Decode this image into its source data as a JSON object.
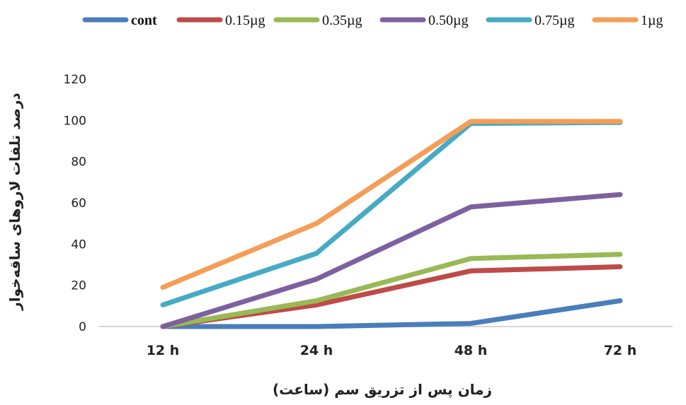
{
  "chart_data": {
    "type": "line",
    "categories": [
      "12 h",
      "24 h",
      "48 h",
      "72 h"
    ],
    "ylim": [
      0,
      120
    ],
    "yticks": [
      0,
      20,
      40,
      60,
      80,
      100,
      120
    ],
    "xlabel": "زمان پس از تزریق سم (ساعت)",
    "ylabel": "درصد تلفات لاروهای ساقه‌خوار",
    "legend_position": "top",
    "grid": false,
    "series": [
      {
        "name": "cont",
        "color": "#4a7ebb",
        "values": [
          0,
          0,
          1.5,
          12.5
        ]
      },
      {
        "name": "0.15µg",
        "color": "#be4b48",
        "values": [
          0,
          10.5,
          27,
          29
        ]
      },
      {
        "name": "0.35µg",
        "color": "#98b954",
        "values": [
          0,
          12.5,
          33,
          35
        ]
      },
      {
        "name": "0.50µg",
        "color": "#7d60a0",
        "values": [
          0,
          23,
          58,
          64
        ]
      },
      {
        "name": "0.75µg",
        "color": "#46aac5",
        "values": [
          10.5,
          35.5,
          98.5,
          99
        ]
      },
      {
        "name": "1µg",
        "color": "#f59d56",
        "values": [
          19,
          50,
          99.5,
          99.5
        ]
      }
    ]
  }
}
